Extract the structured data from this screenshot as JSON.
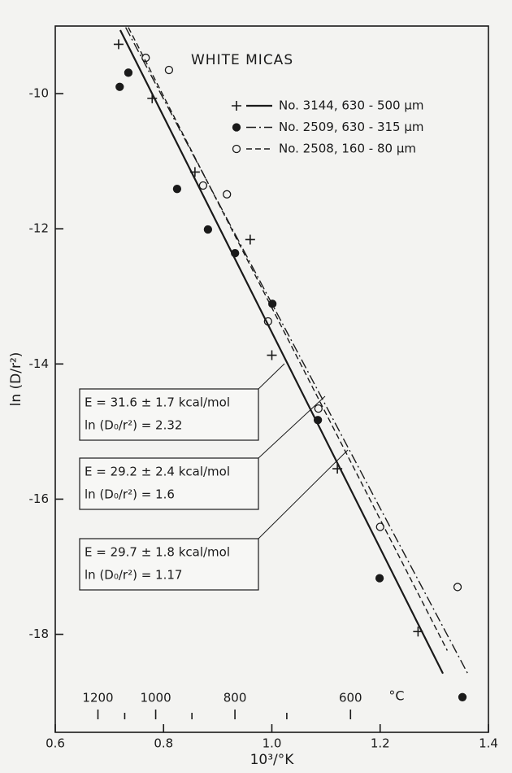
{
  "chart_data": {
    "type": "scatter",
    "title": "WHITE MICAS",
    "x_label": "10³/°K",
    "y_label": "ln (D/r²)",
    "xlim": [
      0.6,
      1.4
    ],
    "xticks": [
      0.6,
      0.8,
      {
        "value": 1,
        "label": "1.0"
      },
      1.2,
      1.4
    ],
    "ylim": [
      -19.45,
      -9.0
    ],
    "yticks": [
      -10,
      -12,
      -14,
      -16,
      -18
    ],
    "temp_label": "°C",
    "temp_ticks": [
      1200,
      1000,
      800,
      600
    ],
    "temp_minor_ticks": [
      1100,
      900,
      700
    ],
    "series": [
      {
        "name": "No. 3144, 630 - 500 µm",
        "color": "#1a1a1a",
        "marker": "plus",
        "line": "solid",
        "x": [
          0.717,
          0.779,
          0.858,
          0.96,
          1.0,
          1.121,
          1.27
        ],
        "values": [
          -9.27,
          -10.07,
          -11.16,
          -12.16,
          -13.87,
          -15.55,
          -17.96
        ],
        "fit_x": [
          0.72,
          1.316
        ],
        "fit_y": [
          -9.06,
          -18.58
        ]
      },
      {
        "name": "No. 2509, 630 - 315 µm",
        "color": "#1a1a1a",
        "marker": "filled",
        "line": "dashdot",
        "x": [
          0.719,
          0.735,
          0.825,
          0.882,
          0.932,
          1.001,
          1.085,
          1.199,
          1.352
        ],
        "values": [
          -9.9,
          -9.69,
          -11.41,
          -12.01,
          -12.36,
          -13.11,
          -14.83,
          -17.17,
          -18.93
        ],
        "fit_x": [
          0.73,
          1.363
        ],
        "fit_y": [
          -9.02,
          -18.6
        ]
      },
      {
        "name": "No. 2508, 160 - 80 µm",
        "color": "#1a1a1a",
        "marker": "open",
        "line": "dashed",
        "x": [
          0.767,
          0.81,
          0.873,
          0.917,
          0.993,
          1.086,
          1.2,
          1.343
        ],
        "values": [
          -9.47,
          -9.65,
          -11.36,
          -11.49,
          -13.37,
          -14.66,
          -16.41,
          -17.3
        ],
        "fit_x": [
          0.735,
          1.324
        ],
        "fit_y": [
          -9.02,
          -18.24
        ]
      }
    ],
    "annotations": [
      {
        "lines": [
          "E = 31.6 ± 1.7 kcal/mol",
          "ln (D₀/r²) = 2.32"
        ]
      },
      {
        "lines": [
          "E = 29.2 ± 2.4 kcal/mol",
          "ln (D₀/r²) = 1.6"
        ]
      },
      {
        "lines": [
          "E = 29.7 ± 1.8 kcal/mol",
          "ln (D₀/r²) = 1.17"
        ]
      }
    ]
  }
}
